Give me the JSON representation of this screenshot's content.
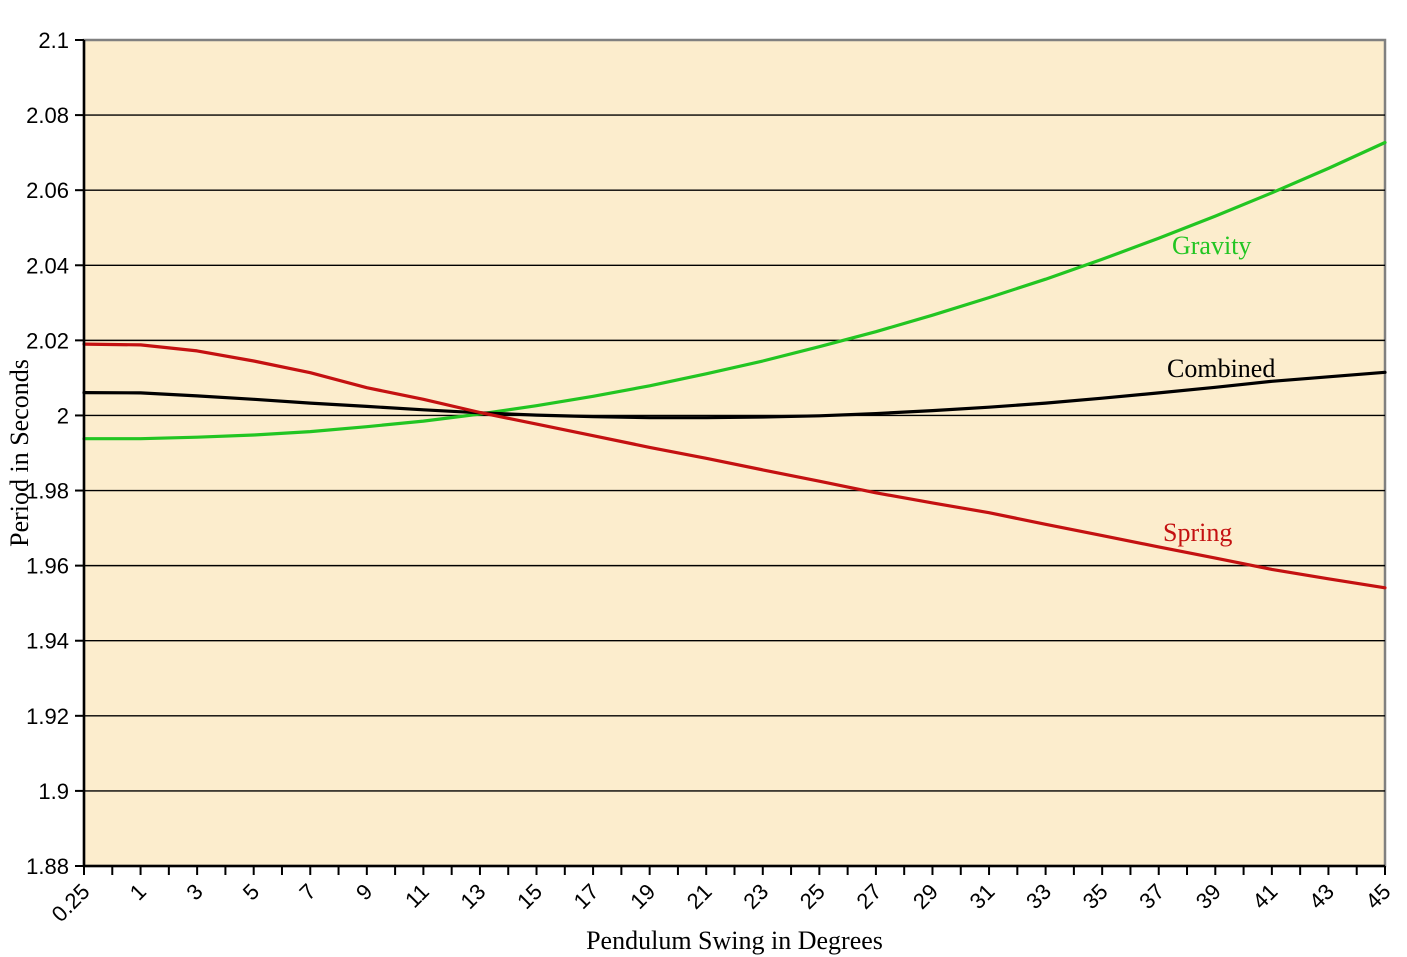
{
  "chart_data": {
    "type": "line",
    "title": "",
    "xlabel": "Pendulum Swing in Degrees",
    "ylabel": "Period in Seconds",
    "x": [
      0.25,
      1,
      3,
      5,
      7,
      9,
      11,
      13,
      15,
      17,
      19,
      21,
      23,
      25,
      27,
      29,
      31,
      33,
      35,
      37,
      39,
      41,
      43,
      45
    ],
    "x_tick_labels": [
      "0.25",
      "1",
      "3",
      "5",
      "7",
      "9",
      "11",
      "13",
      "15",
      "17",
      "19",
      "21",
      "23",
      "25",
      "27",
      "29",
      "31",
      "33",
      "35",
      "37",
      "39",
      "41",
      "43",
      "45"
    ],
    "y_ticks": [
      2.1,
      2.08,
      2.06,
      2.04,
      2.02,
      2.0,
      1.98,
      1.96,
      1.94,
      1.92,
      1.9,
      1.88
    ],
    "y_tick_labels": [
      "2.1",
      "2.08",
      "2.06",
      "2.04",
      "2.02",
      "2",
      "1.98",
      "1.96",
      "1.94",
      "1.92",
      "1.9",
      "1.88"
    ],
    "ylim": [
      1.88,
      2.1
    ],
    "grid": "horizontal-only",
    "legend_position": "labels-on-chart",
    "series": [
      {
        "name": "Gravity",
        "color": "#22c522",
        "values": [
          1.9938,
          1.9938,
          1.9942,
          1.9948,
          1.9957,
          1.997,
          1.9985,
          2.0004,
          2.0026,
          2.0051,
          2.0079,
          2.0111,
          2.0145,
          2.0183,
          2.0223,
          2.0267,
          2.0314,
          2.0363,
          2.0416,
          2.0472,
          2.0531,
          2.0593,
          2.0658,
          2.0727
        ]
      },
      {
        "name": "Combined",
        "color": "#000000",
        "values": [
          2.0061,
          2.006,
          2.0052,
          2.0043,
          2.0033,
          2.0024,
          2.0015,
          2.0007,
          2.0001,
          1.9997,
          1.9994,
          1.9994,
          1.9996,
          1.9999,
          2.0005,
          2.0013,
          2.0022,
          2.0033,
          2.0046,
          2.006,
          2.0075,
          2.0091,
          2.0103,
          2.0115
        ]
      },
      {
        "name": "Spring",
        "color": "#c41111",
        "values": [
          2.019,
          2.0188,
          2.0172,
          2.0145,
          2.0114,
          2.0074,
          2.0043,
          2.0008,
          1.9977,
          1.9946,
          1.9915,
          1.9886,
          1.9855,
          1.9825,
          1.9794,
          1.9767,
          1.9741,
          1.971,
          1.968,
          1.965,
          1.962,
          1.959,
          1.9565,
          1.9541
        ]
      }
    ],
    "colors": {
      "plot_background": "#fcedcd",
      "plot_border": "#808080",
      "gridline": "#000000",
      "axis": "#000000",
      "tick_label": "#000000"
    }
  }
}
